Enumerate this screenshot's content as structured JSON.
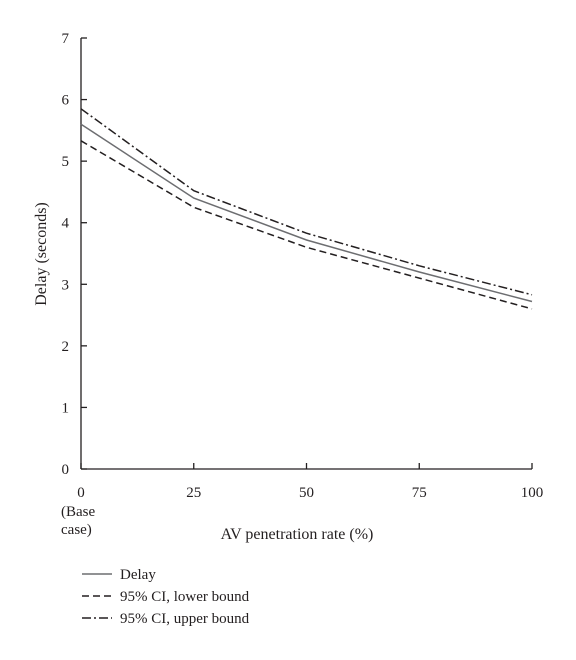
{
  "chart_data": {
    "type": "line",
    "xlabel": "AV penetration rate (%)",
    "ylabel": "Delay (seconds)",
    "x": [
      0,
      25,
      50,
      75,
      100
    ],
    "x_tick_labels": [
      "0",
      "25",
      "50",
      "75",
      "100"
    ],
    "x_first_tick_note": [
      "(Base",
      "case)"
    ],
    "y_ticks": [
      0,
      1,
      2,
      3,
      4,
      5,
      6,
      7
    ],
    "xlim": [
      0,
      100
    ],
    "ylim": [
      0,
      7
    ],
    "grid": false,
    "legend_position": "bottom-left",
    "series": [
      {
        "name": "Delay",
        "style": "solid",
        "values": [
          5.6,
          4.4,
          3.72,
          3.2,
          2.72
        ]
      },
      {
        "name": "95% CI, lower bound",
        "style": "dashed",
        "values": [
          5.33,
          4.25,
          3.6,
          3.1,
          2.6
        ]
      },
      {
        "name": "95% CI, upper bound",
        "style": "dashdot",
        "values": [
          5.85,
          4.52,
          3.83,
          3.3,
          2.83
        ]
      }
    ],
    "colors": {
      "solid": "#6d6e71",
      "dashed": "#231f20",
      "dashdot": "#231f20",
      "axis": "#231f20"
    }
  }
}
